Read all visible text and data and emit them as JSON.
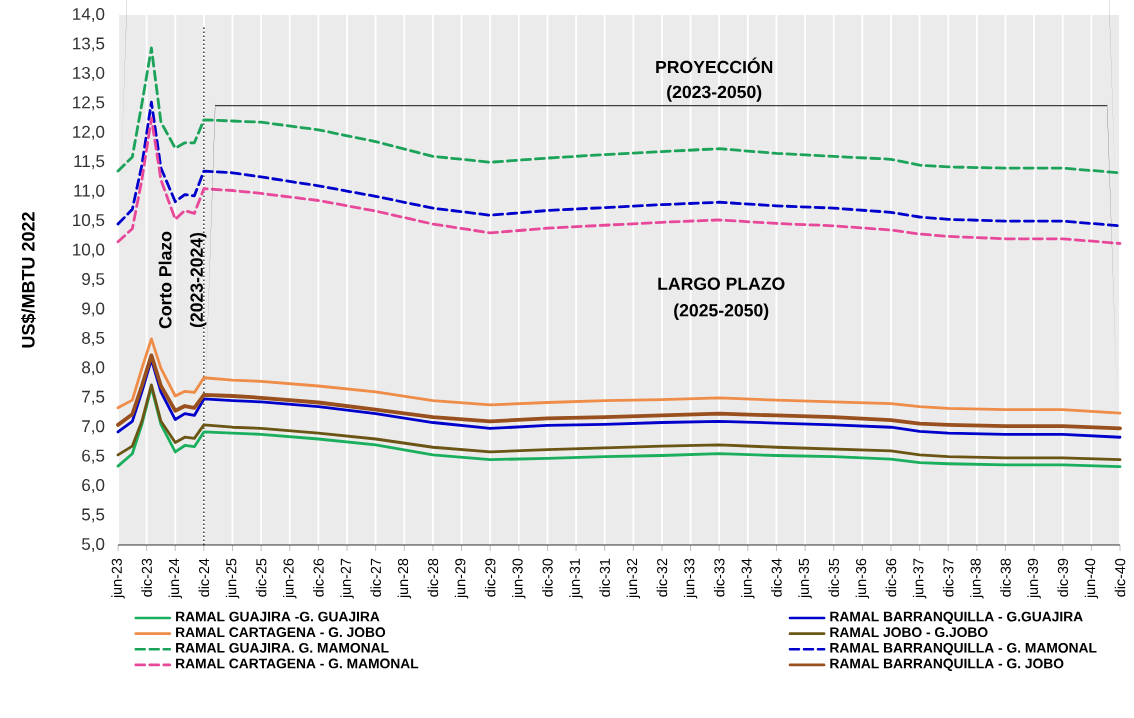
{
  "chart_data": {
    "type": "line",
    "ylabel": "US$/MBTU 2022",
    "annotations": [
      "PROYECCIÓN",
      "(2023-2050)",
      "LARGO PLAZO",
      "(2025-2050)",
      "Corto Plazo",
      "(2023-2024)"
    ],
    "x": [
      "2023-06",
      "2023-09",
      "2023-11",
      "2024-01",
      "2024-03",
      "2024-06",
      "2024-08",
      "2024-10",
      "2024-12",
      "2025-06",
      "2025-12",
      "2026-12",
      "2027-12",
      "2028-12",
      "2029-12",
      "2030-12",
      "2031-12",
      "2032-12",
      "2033-12",
      "2034-12",
      "2035-12",
      "2036-12",
      "2037-06",
      "2037-12",
      "2038-12",
      "2039-12",
      "2040-12"
    ],
    "series": [
      {
        "name": "RAMAL GUAJIRA -G. GUAJIRA",
        "color": "#1aaf5d",
        "line_style": "solid",
        "values": [
          6.34,
          6.55,
          7.05,
          7.68,
          7.05,
          6.58,
          6.69,
          6.67,
          6.92,
          6.9,
          6.88,
          6.8,
          6.7,
          6.53,
          6.45,
          6.47,
          6.5,
          6.52,
          6.55,
          6.52,
          6.5,
          6.46,
          6.4,
          6.38,
          6.36,
          6.36,
          6.33
        ]
      },
      {
        "name": "RAMAL BARRANQUILLA - G.GUAJIRA",
        "color": "#0000cc",
        "line_style": "solid",
        "values": [
          6.92,
          7.1,
          7.6,
          8.15,
          7.6,
          7.13,
          7.23,
          7.2,
          7.48,
          7.45,
          7.43,
          7.35,
          7.23,
          7.08,
          6.98,
          7.03,
          7.05,
          7.08,
          7.1,
          7.07,
          7.04,
          7.0,
          6.93,
          6.9,
          6.88,
          6.88,
          6.83
        ]
      },
      {
        "name": "RAMAL CARTAGENA - G. JOBO",
        "color": "#ee8c48",
        "line_style": "solid",
        "values": [
          7.33,
          7.46,
          8.0,
          8.5,
          8.0,
          7.53,
          7.61,
          7.59,
          7.84,
          7.8,
          7.78,
          7.7,
          7.6,
          7.45,
          7.38,
          7.42,
          7.45,
          7.47,
          7.5,
          7.46,
          7.43,
          7.4,
          7.35,
          7.32,
          7.3,
          7.3,
          7.24
        ]
      },
      {
        "name": "RAMAL JOBO - G.JOBO",
        "color": "#6b5514",
        "line_style": "solid",
        "values": [
          6.53,
          6.68,
          7.1,
          7.72,
          7.1,
          6.74,
          6.83,
          6.81,
          7.04,
          7.0,
          6.98,
          6.9,
          6.8,
          6.66,
          6.58,
          6.62,
          6.65,
          6.68,
          6.7,
          6.66,
          6.63,
          6.6,
          6.53,
          6.5,
          6.48,
          6.48,
          6.45
        ]
      },
      {
        "name": "RAMAL GUAJIRA. G. MAMONAL",
        "color": "#1ba35a",
        "line_style": "dashed",
        "values": [
          11.35,
          11.59,
          12.49,
          13.44,
          12.18,
          11.74,
          11.83,
          11.83,
          12.22,
          12.2,
          12.18,
          12.05,
          11.85,
          11.6,
          11.5,
          11.57,
          11.63,
          11.68,
          11.73,
          11.65,
          11.6,
          11.55,
          11.45,
          11.42,
          11.4,
          11.4,
          11.32
        ]
      },
      {
        "name": "RAMAL BARRANQUILLA - G. MAMONAL",
        "color": "#0000cc",
        "line_style": "dashed",
        "values": [
          10.45,
          10.7,
          11.45,
          12.52,
          11.4,
          10.83,
          10.95,
          10.93,
          11.35,
          11.32,
          11.25,
          11.1,
          10.92,
          10.72,
          10.6,
          10.68,
          10.73,
          10.78,
          10.82,
          10.76,
          10.72,
          10.65,
          10.57,
          10.53,
          10.5,
          10.5,
          10.42
        ]
      },
      {
        "name": "RAMAL CARTAGENA - G. MAMONAL",
        "color": "#e8489a",
        "line_style": "dashed",
        "values": [
          10.15,
          10.37,
          11.2,
          12.25,
          11.2,
          10.53,
          10.68,
          10.63,
          11.05,
          11.02,
          10.97,
          10.85,
          10.67,
          10.45,
          10.3,
          10.38,
          10.43,
          10.48,
          10.52,
          10.46,
          10.42,
          10.35,
          10.28,
          10.24,
          10.2,
          10.2,
          10.12
        ]
      },
      {
        "name": "RAMAL BARRANQUILLA - G. JOBO",
        "color": "#99501e",
        "line_style": "solid",
        "values": [
          7.04,
          7.22,
          7.7,
          8.22,
          7.7,
          7.28,
          7.36,
          7.33,
          7.55,
          7.53,
          7.5,
          7.42,
          7.3,
          7.17,
          7.1,
          7.15,
          7.17,
          7.2,
          7.23,
          7.2,
          7.17,
          7.12,
          7.06,
          7.04,
          7.02,
          7.02,
          6.98
        ]
      }
    ],
    "ylim": [
      5,
      14
    ],
    "yticks": [
      {
        "value": 5,
        "label": "5,0"
      },
      {
        "value": 5.5,
        "label": "5,5"
      },
      {
        "value": 6,
        "label": "6,0"
      },
      {
        "value": 6.5,
        "label": "6,5"
      },
      {
        "value": 7,
        "label": "7,0"
      },
      {
        "value": 7.5,
        "label": "7,5"
      },
      {
        "value": 8,
        "label": "8,0"
      },
      {
        "value": 8.5,
        "label": "8,5"
      },
      {
        "value": 9,
        "label": "9,0"
      },
      {
        "value": 9.5,
        "label": "9,5"
      },
      {
        "value": 10,
        "label": "10,0"
      },
      {
        "value": 10.5,
        "label": "10,5"
      },
      {
        "value": 11,
        "label": "11,0"
      },
      {
        "value": 11.5,
        "label": "11,5"
      },
      {
        "value": 12,
        "label": "12,0"
      },
      {
        "value": 12.5,
        "label": "12,5"
      },
      {
        "value": 13,
        "label": "13,0"
      },
      {
        "value": 13.5,
        "label": "13,5"
      },
      {
        "value": 14,
        "label": "14,0"
      }
    ],
    "xlim": [
      "2023-06",
      "2040-12"
    ],
    "xticks": [
      {
        "value": "2023-06",
        "label": "jun-23"
      },
      {
        "value": "2023-12",
        "label": "dic-23"
      },
      {
        "value": "2024-06",
        "label": "jun-24"
      },
      {
        "value": "2024-12",
        "label": "dic-24"
      },
      {
        "value": "2025-06",
        "label": "jun-25"
      },
      {
        "value": "2025-12",
        "label": "dic-25"
      },
      {
        "value": "2026-06",
        "label": "jun-26"
      },
      {
        "value": "2026-12",
        "label": "dic-26"
      },
      {
        "value": "2027-06",
        "label": "jun-27"
      },
      {
        "value": "2027-12",
        "label": "dic-27"
      },
      {
        "value": "2028-06",
        "label": "jun-28"
      },
      {
        "value": "2028-12",
        "label": "dic-28"
      },
      {
        "value": "2029-06",
        "label": "jun-29"
      },
      {
        "value": "2029-12",
        "label": "dic-29"
      },
      {
        "value": "2030-06",
        "label": "jun-30"
      },
      {
        "value": "2030-12",
        "label": "dic-30"
      },
      {
        "value": "2031-06",
        "label": "jun-31"
      },
      {
        "value": "2031-12",
        "label": "dic-31"
      },
      {
        "value": "2032-06",
        "label": "jun-32"
      },
      {
        "value": "2032-12",
        "label": "dic-32"
      },
      {
        "value": "2033-06",
        "label": "jun-33"
      },
      {
        "value": "2033-12",
        "label": "dic-33"
      },
      {
        "value": "2034-06",
        "label": "jun-34"
      },
      {
        "value": "2034-12",
        "label": "dic-34"
      },
      {
        "value": "2035-06",
        "label": "jun-35"
      },
      {
        "value": "2035-12",
        "label": "dic-35"
      },
      {
        "value": "2036-06",
        "label": "jun-36"
      },
      {
        "value": "2036-12",
        "label": "dic-36"
      },
      {
        "value": "2037-06",
        "label": "jun-37"
      },
      {
        "value": "2037-12",
        "label": "dic-37"
      },
      {
        "value": "2038-06",
        "label": "jun-38"
      },
      {
        "value": "2038-12",
        "label": "dic-38"
      },
      {
        "value": "2039-06",
        "label": "jun-39"
      },
      {
        "value": "2039-12",
        "label": "dic-39"
      },
      {
        "value": "2040-06",
        "label": "jun-40"
      },
      {
        "value": "2040-12",
        "label": "dic-40"
      }
    ],
    "ref_lines": [
      {
        "axis": "x",
        "value": "2024-12",
        "color": "#000000",
        "line_style": "dotted"
      }
    ],
    "grid": "x",
    "legend": "bottom"
  }
}
